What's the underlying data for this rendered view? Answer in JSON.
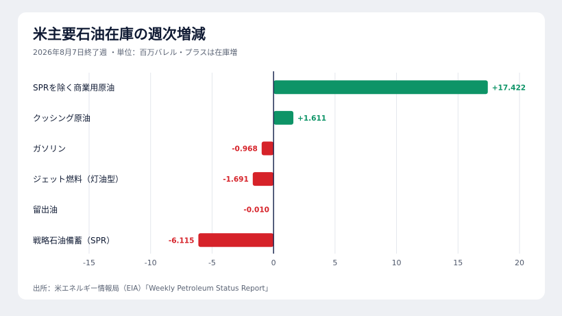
{
  "title": "米主要石油在庫の週次増減",
  "subtitle": "2026年8月7日終了週 ・単位：百万バレル・プラスは在庫増",
  "source": "出所：米エネルギー情報局（EIA）「Weekly Petroleum Status Report」",
  "colors": {
    "positive": "#0e9467",
    "negative": "#d62229",
    "axis": "#1d2a52",
    "grid": "#e3e6ec"
  },
  "chart_data": {
    "type": "bar",
    "orientation": "horizontal",
    "categories": [
      "SPRを除く商業用原油",
      "クッシング原油",
      "ガソリン",
      "ジェット燃料（灯油型）",
      "留出油",
      "戦略石油備蓄（SPR）"
    ],
    "values": [
      17.422,
      1.611,
      -0.968,
      -1.691,
      -0.01,
      -6.115
    ],
    "value_labels": [
      "+17.422",
      "+1.611",
      "-0.968",
      "-1.691",
      "-0.010",
      "-6.115"
    ],
    "xlim": [
      -15,
      20
    ],
    "xticks": [
      -15,
      -10,
      -5,
      0,
      5,
      10,
      15,
      20
    ],
    "xtick_labels": [
      "-15",
      "-10",
      "-5",
      "0",
      "5",
      "10",
      "15",
      "20"
    ],
    "grid": true,
    "xlabel": "",
    "ylabel": ""
  }
}
